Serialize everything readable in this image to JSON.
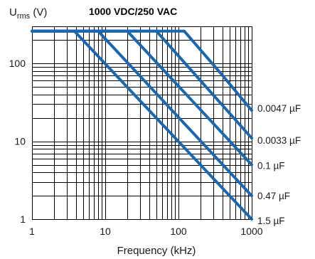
{
  "chart_data": {
    "type": "line",
    "title": "1000 VDC/250 VAC",
    "xlabel": "Frequency (kHz)",
    "ylabel": {
      "main": "U",
      "sub": "rms",
      "unit": " (V)"
    },
    "xscale": "log",
    "yscale": "log",
    "xlim": [
      1,
      1000
    ],
    "ylim": [
      1,
      300
    ],
    "x_ticks": [
      {
        "value": 1,
        "label": "1"
      },
      {
        "value": 10,
        "label": "10"
      },
      {
        "value": 100,
        "label": "100"
      },
      {
        "value": 1000,
        "label": "1000"
      }
    ],
    "y_ticks": [
      {
        "value": 1,
        "label": "1"
      },
      {
        "value": 10,
        "label": "10"
      },
      {
        "value": 100,
        "label": "100"
      }
    ],
    "grid": true,
    "color": "#1a67ad",
    "series": [
      {
        "name": "0.0047 µF",
        "points": [
          [
            1,
            260
          ],
          [
            120,
            260
          ],
          [
            400,
            70
          ],
          [
            1000,
            25
          ]
        ]
      },
      {
        "name": "0.0033 µF",
        "points": [
          [
            1,
            260
          ],
          [
            50,
            260
          ],
          [
            1000,
            11
          ]
        ]
      },
      {
        "name": "0.1 µF",
        "points": [
          [
            1,
            260
          ],
          [
            20,
            260
          ],
          [
            1000,
            5
          ]
        ]
      },
      {
        "name": "0.47 µF",
        "points": [
          [
            1,
            260
          ],
          [
            8,
            260
          ],
          [
            1000,
            2
          ]
        ]
      },
      {
        "name": "1.5 µF",
        "points": [
          [
            1,
            260
          ],
          [
            3.8,
            260
          ],
          [
            1000,
            1
          ]
        ]
      }
    ]
  }
}
